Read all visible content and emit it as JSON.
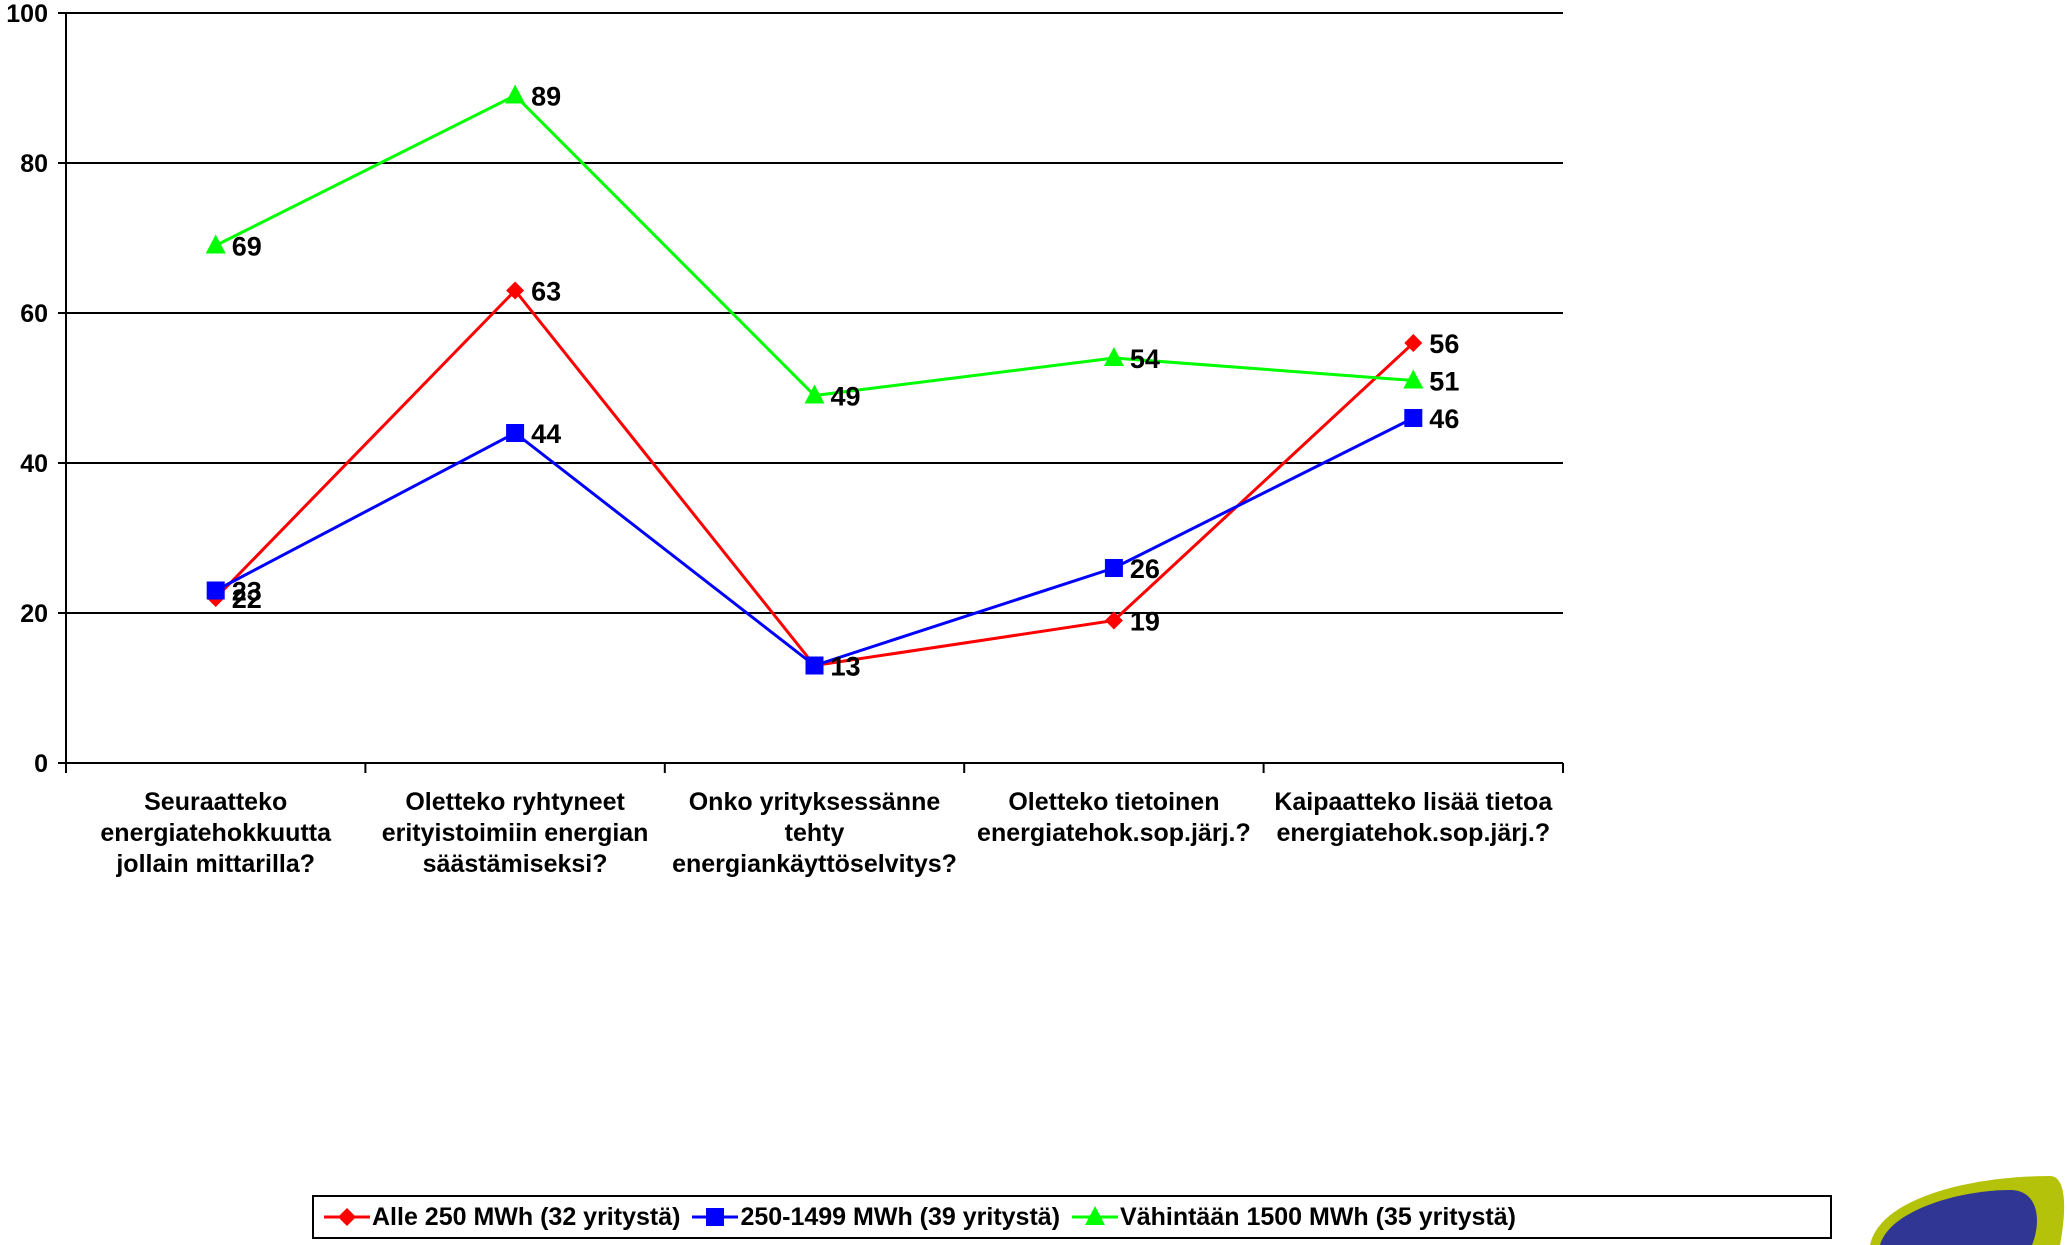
{
  "chart_data": {
    "type": "line",
    "title": "",
    "categories": [
      [
        "Seuraatteko",
        "energiatehokkuutta",
        "jollain mittarilla?"
      ],
      [
        "Oletteko ryhtyneet",
        "erityistoimiin energian",
        "säästämiseksi?"
      ],
      [
        "Onko yrityksessänne",
        "tehty",
        "energiankäyttöselvitys?"
      ],
      [
        "Oletteko tietoinen",
        "energiatehok.sop.järj.?"
      ],
      [
        "Kaipaatteko lisää tietoa",
        "energiatehok.sop.järj.?"
      ]
    ],
    "series": [
      {
        "name": "Alle 250 MWh (32 yritystä)",
        "color": "#ff0000",
        "marker": "diamond",
        "values": [
          22,
          63,
          13,
          19,
          56
        ]
      },
      {
        "name": "250-1499 MWh (39 yritystä)",
        "color": "#0000ff",
        "marker": "square",
        "values": [
          23,
          44,
          13,
          26,
          46
        ]
      },
      {
        "name": "Vähintään 1500 MWh (35 yritystä)",
        "color": "#00ff00",
        "marker": "triangle",
        "values": [
          69,
          89,
          49,
          54,
          51
        ]
      }
    ],
    "ylim": [
      0,
      100
    ],
    "yticks": [
      0,
      20,
      40,
      60,
      80,
      100
    ],
    "grid": true,
    "legend": "bottom"
  }
}
